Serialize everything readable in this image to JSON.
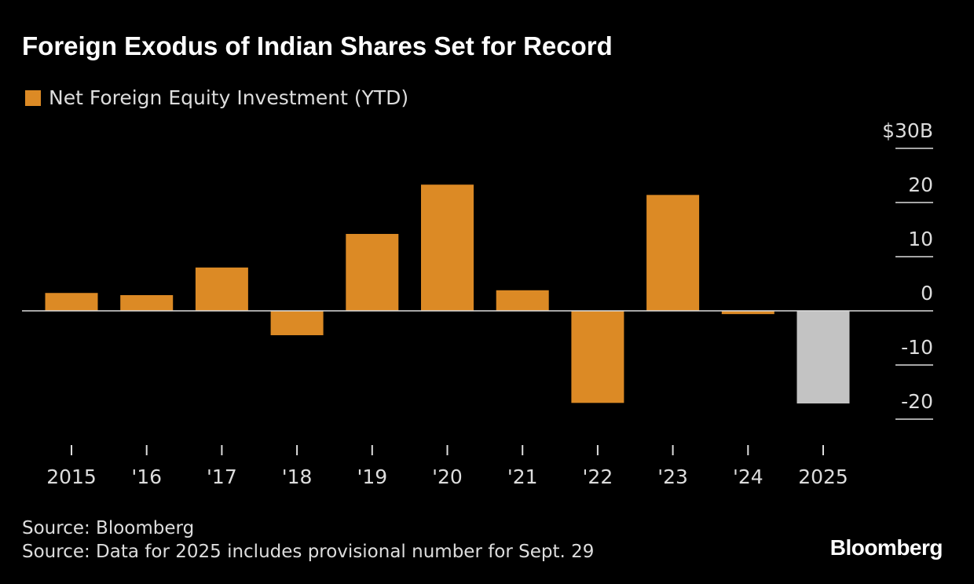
{
  "title": "Foreign Exodus of Indian Shares Set for Record",
  "source": "Source: Bloomberg",
  "note": "Source: Data for 2025 includes provisional number for Sept. 29",
  "logo": "Bloomberg",
  "chart_data": {
    "type": "bar",
    "categories": [
      "2015",
      "'16",
      "'17",
      "'18",
      "'19",
      "'20",
      "'21",
      "'22",
      "'23",
      "'24",
      "2025"
    ],
    "series": [
      {
        "name": "Net Foreign Equity Investment (YTD)",
        "values": [
          3.3,
          2.9,
          8.0,
          -4.5,
          14.2,
          23.3,
          3.8,
          -17.0,
          21.4,
          -0.6,
          -17.1
        ]
      }
    ],
    "highlight_category": "2025",
    "ylim": [
      -20,
      30
    ],
    "yticks": [
      30,
      20,
      10,
      0,
      -10,
      -20
    ],
    "ytick_labels": [
      "$30B",
      "20",
      "10",
      "0",
      "-10",
      "-20"
    ],
    "axis_side": "right",
    "colors": {
      "bar": "#dc8a25",
      "highlight": "#c3c3c3",
      "background": "#000000"
    }
  }
}
